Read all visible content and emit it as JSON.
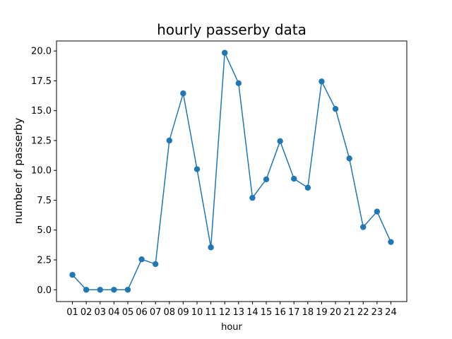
{
  "chart_data": {
    "type": "line",
    "title": "hourly passerby data",
    "xlabel": "hour",
    "ylabel": "number of passerby",
    "categories": [
      "01",
      "02",
      "03",
      "04",
      "05",
      "06",
      "07",
      "08",
      "09",
      "10",
      "11",
      "12",
      "13",
      "14",
      "15",
      "16",
      "17",
      "18",
      "19",
      "20",
      "21",
      "22",
      "23",
      "24"
    ],
    "series": [
      {
        "values": [
          1.25,
          0.0,
          0.0,
          0.0,
          0.0,
          2.55,
          2.15,
          12.5,
          16.45,
          10.1,
          3.55,
          19.85,
          17.3,
          7.7,
          9.25,
          12.45,
          9.3,
          8.55,
          17.45,
          15.15,
          11.0,
          5.25,
          6.55,
          4.0
        ],
        "color": "#1f77b4",
        "marker": "circle"
      }
    ],
    "yticks": [
      "0.0",
      "2.5",
      "5.0",
      "7.5",
      "10.0",
      "12.5",
      "15.0",
      "17.5",
      "20.0"
    ],
    "ylim": [
      -0.99,
      20.84
    ],
    "grid": false,
    "legend": false
  }
}
